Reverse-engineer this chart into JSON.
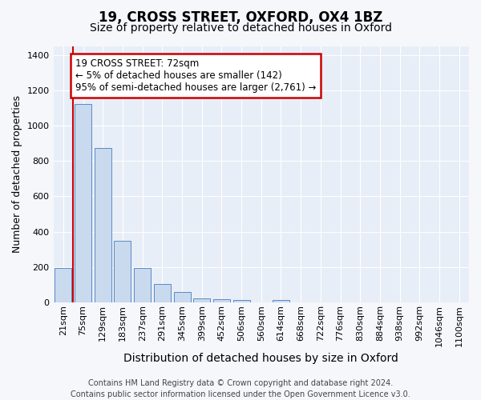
{
  "title": "19, CROSS STREET, OXFORD, OX4 1BZ",
  "subtitle": "Size of property relative to detached houses in Oxford",
  "xlabel": "Distribution of detached houses by size in Oxford",
  "ylabel": "Number of detached properties",
  "categories": [
    "21sqm",
    "75sqm",
    "129sqm",
    "183sqm",
    "237sqm",
    "291sqm",
    "345sqm",
    "399sqm",
    "452sqm",
    "506sqm",
    "560sqm",
    "614sqm",
    "668sqm",
    "722sqm",
    "776sqm",
    "830sqm",
    "884sqm",
    "938sqm",
    "992sqm",
    "1046sqm",
    "1100sqm"
  ],
  "values": [
    195,
    1120,
    875,
    350,
    195,
    105,
    57,
    22,
    18,
    15,
    0,
    15,
    0,
    0,
    0,
    0,
    0,
    0,
    0,
    0,
    0
  ],
  "bar_color": "#c9d9ee",
  "bar_edge_color": "#5b8ac5",
  "annotation_text": "19 CROSS STREET: 72sqm\n← 5% of detached houses are smaller (142)\n95% of semi-detached houses are larger (2,761) →",
  "annotation_box_color": "#ffffff",
  "annotation_box_edge": "#cc0000",
  "vline_color": "#cc0000",
  "footer_text": "Contains HM Land Registry data © Crown copyright and database right 2024.\nContains public sector information licensed under the Open Government Licence v3.0.",
  "ylim": [
    0,
    1450
  ],
  "bg_color": "#e8eef7",
  "fig_bg_color": "#f5f7fb",
  "grid_color": "#ffffff",
  "title_fontsize": 12,
  "subtitle_fontsize": 10,
  "xlabel_fontsize": 10,
  "ylabel_fontsize": 9,
  "tick_fontsize": 8,
  "footer_fontsize": 7,
  "annot_fontsize": 8.5
}
